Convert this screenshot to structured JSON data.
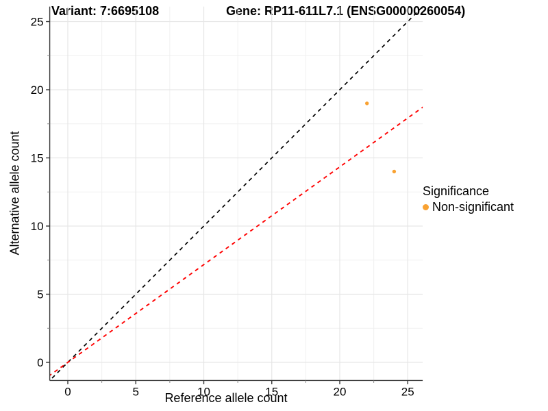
{
  "header": {
    "variant_title": "Variant: 7:6695108",
    "gene_title": "Gene: RP11-611L7.1 (ENSG00000260054)"
  },
  "legend": {
    "title": "Significance",
    "items": [
      {
        "label": "Non-significant",
        "color": "#F9A232"
      }
    ]
  },
  "chart_data": {
    "type": "scatter",
    "title": "Variant: 7:6695108 | Gene: RP11-611L7.1 (ENSG00000260054)",
    "xlabel": "Reference allele count",
    "ylabel": "Alternative allele count",
    "xlim": [
      -1.33,
      26.1
    ],
    "ylim": [
      -1.33,
      26.1
    ],
    "major_ticks": [
      0,
      5,
      10,
      15,
      20,
      25
    ],
    "minor_ticks": [
      2.5,
      7.5,
      12.5,
      17.5,
      22.5
    ],
    "grid": true,
    "legend_position": "right",
    "series": [
      {
        "name": "Non-significant",
        "color": "#F9A232",
        "point_radius": 2.7,
        "points": [
          [
            22,
            19
          ],
          [
            24,
            14
          ]
        ]
      }
    ],
    "lines": [
      {
        "name": "identity-line",
        "slope": 1.0,
        "intercept": 0,
        "color": "#000000",
        "dashed": true,
        "width": 1.7
      },
      {
        "name": "expected-ratio-line",
        "slope": 0.717,
        "intercept": 0,
        "color": "#FF0000",
        "dashed": true,
        "width": 1.9
      }
    ],
    "colors": {
      "axis_line": "#3c3c3c",
      "major_grid": "#E6E6E6",
      "minor_grid": "#F0F0F0",
      "major_tick": "#333333",
      "minor_tick": "#8a8a8a",
      "tick_label": "#000000"
    }
  }
}
